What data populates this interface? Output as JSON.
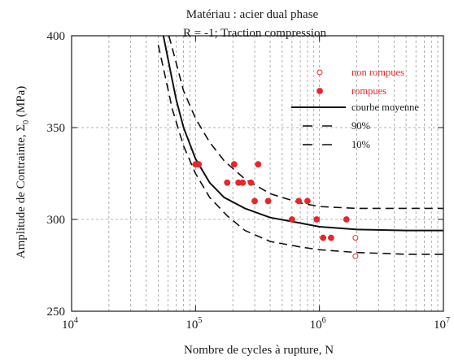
{
  "chart_data": {
    "type": "scatter",
    "title": "Matériau : acier dual phase",
    "subtitle": "R = -1; Traction compression",
    "xlabel": "Nombre de cycles à rupture, N",
    "ylabel": "Amplitude de Contrainte, Σ",
    "ylabel_sub": "0",
    "ylabel_unit": " (MPa)",
    "xscale": "log",
    "xlim": [
      10000,
      10000000
    ],
    "ylim": [
      250,
      400
    ],
    "grid": true,
    "x_ticks": [
      {
        "value": 10000,
        "base": "10",
        "exp": "4"
      },
      {
        "value": 100000,
        "base": "10",
        "exp": "5"
      },
      {
        "value": 1000000,
        "base": "10",
        "exp": "6"
      },
      {
        "value": 10000000,
        "base": "10",
        "exp": "7"
      }
    ],
    "y_ticks": [
      250,
      300,
      350,
      400
    ],
    "legend_position": "top-right",
    "colors": {
      "points": "#e8262a",
      "curves": "#111111",
      "grid": "#9a9a9a"
    },
    "series": [
      {
        "name": "non rompues",
        "kind": "marker-open",
        "points": [
          [
            1950000,
            290
          ],
          [
            1950000,
            280
          ]
        ]
      },
      {
        "name": "rompues",
        "kind": "marker-filled",
        "points": [
          [
            100000,
            330
          ],
          [
            106000,
            330
          ],
          [
            180000,
            320
          ],
          [
            205000,
            330
          ],
          [
            222000,
            320
          ],
          [
            240000,
            320
          ],
          [
            280000,
            320
          ],
          [
            300000,
            310
          ],
          [
            320000,
            330
          ],
          [
            385000,
            310
          ],
          [
            600000,
            300
          ],
          [
            680000,
            310
          ],
          [
            800000,
            310
          ],
          [
            950000,
            300
          ],
          [
            1070000,
            290
          ],
          [
            1240000,
            290
          ],
          [
            1650000,
            300
          ]
        ]
      },
      {
        "name": "courbe moyenne",
        "kind": "line-solid",
        "points": [
          [
            55000,
            400
          ],
          [
            63000,
            380
          ],
          [
            70000,
            365
          ],
          [
            80000,
            350
          ],
          [
            100000,
            333
          ],
          [
            130000,
            320
          ],
          [
            170000,
            312
          ],
          [
            250000,
            306
          ],
          [
            400000,
            301
          ],
          [
            700000,
            298
          ],
          [
            1000000,
            296
          ],
          [
            2000000,
            294.5
          ],
          [
            5000000,
            294
          ],
          [
            10000000,
            294
          ]
        ]
      },
      {
        "name": "90%",
        "kind": "line-dashed",
        "points": [
          [
            61000,
            400
          ],
          [
            70000,
            385
          ],
          [
            80000,
            370
          ],
          [
            100000,
            355
          ],
          [
            130000,
            342
          ],
          [
            170000,
            332
          ],
          [
            250000,
            322
          ],
          [
            400000,
            314
          ],
          [
            700000,
            309
          ],
          [
            1000000,
            307
          ],
          [
            2000000,
            306
          ],
          [
            5000000,
            306
          ],
          [
            10000000,
            306
          ]
        ]
      },
      {
        "name": "10%",
        "kind": "line-dashed",
        "points": [
          [
            50000,
            395
          ],
          [
            56000,
            380
          ],
          [
            65000,
            360
          ],
          [
            80000,
            340
          ],
          [
            100000,
            325
          ],
          [
            130000,
            312
          ],
          [
            180000,
            302
          ],
          [
            250000,
            294
          ],
          [
            400000,
            288
          ],
          [
            700000,
            285
          ],
          [
            1000000,
            283.5
          ],
          [
            2000000,
            282
          ],
          [
            5000000,
            281
          ],
          [
            10000000,
            281
          ]
        ]
      }
    ]
  }
}
